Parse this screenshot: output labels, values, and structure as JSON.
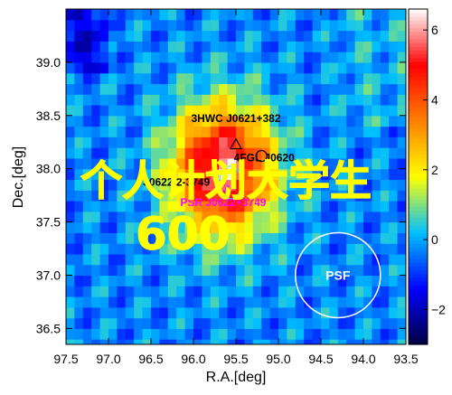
{
  "chart_data": {
    "type": "heatmap",
    "title": "",
    "xlabel": "R.A.[deg]",
    "ylabel": "Dec.[deg]",
    "xlim": [
      97.5,
      93.5
    ],
    "ylim": [
      36.35,
      39.5
    ],
    "x_ticks": [
      "97.5",
      "97.0",
      "96.5",
      "96.0",
      "95.5",
      "95.0",
      "94.5",
      "94.0",
      "93.5"
    ],
    "y_ticks": [
      "36.5",
      "37.0",
      "37.5",
      "38.0",
      "38.5",
      "39.0"
    ],
    "colorbar": {
      "range": [
        -3,
        6.6
      ],
      "ticks": [
        "−2",
        "0",
        "2",
        "4",
        "6"
      ],
      "colormap": [
        "#000040",
        "#0000ff",
        "#00c0ff",
        "#ffff00",
        "#ff8000",
        "#ff0000",
        "#ffffff"
      ]
    },
    "peak": {
      "ra": 95.65,
      "dec": 38.0,
      "value": 6.4,
      "sigma_deg": 0.42
    },
    "psf": {
      "ra": 94.3,
      "dec": 37.0,
      "radius_deg": 0.5,
      "label": "PSF"
    },
    "annotations": [
      {
        "text": "3HWC J0621+382",
        "ra": 95.5,
        "dec": 38.44,
        "color": "#000000",
        "marker": "triangle",
        "marker_ra": 95.5,
        "marker_dec": 38.23
      },
      {
        "text": "4FGL J0620.",
        "ra": 95.15,
        "dec": 38.07,
        "color": "#000000",
        "marker": "circle",
        "marker_ra": 95.2,
        "marker_dec": 38.12
      },
      {
        "text": "J0622.2-3749",
        "ra": 96.2,
        "dec": 37.84,
        "color": "#000000",
        "marker": "none"
      },
      {
        "text": "PSR J0622+3749",
        "ra": 95.65,
        "dec": 37.65,
        "color": "#ff00ff",
        "marker": "star",
        "marker_ra": 95.65,
        "marker_dec": 37.82
      }
    ]
  },
  "overlay_text": {
    "line1": "个人计划大学生",
    "line2": "600"
  }
}
